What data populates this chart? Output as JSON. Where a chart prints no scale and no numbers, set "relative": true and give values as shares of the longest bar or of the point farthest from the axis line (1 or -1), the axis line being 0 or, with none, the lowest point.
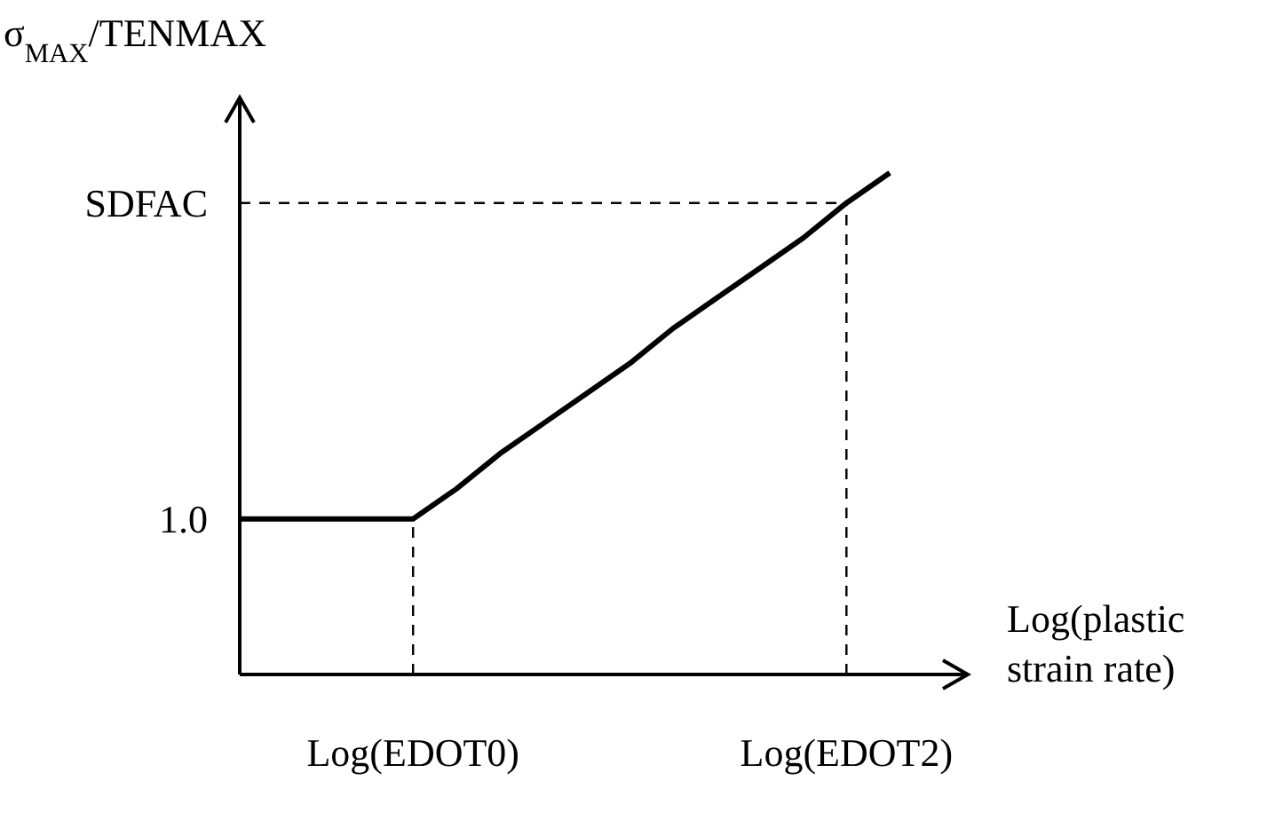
{
  "chart_data": {
    "type": "line",
    "relative": true,
    "ylabel": "σ$_{MAX}$/TENMAX",
    "xlabel": "Log(plastic strain rate)",
    "categories": [
      null,
      null,
      null,
      null,
      "Log(EDOT0)",
      null,
      null,
      null,
      null,
      null,
      null,
      null,
      null,
      null,
      "Log(EDOT2)",
      null
    ],
    "series": [
      {
        "color": "#000000",
        "values": [
          0.31,
          0.31,
          0.31,
          0.31,
          0.31,
          0.37,
          0.44,
          0.5,
          0.56,
          0.62,
          0.69,
          0.75,
          0.81,
          0.87,
          0.94,
          1
        ]
      }
    ],
    "ref_lines": [
      {
        "axis": "x",
        "value": "Log(EDOT0)",
        "line_style": "dashed"
      },
      {
        "axis": "x",
        "value": "Log(EDOT2)",
        "line_style": "dashed"
      },
      {
        "axis": "y",
        "value": 0.94,
        "label": "SDFAC",
        "line_style": "dashed"
      }
    ],
    "annotations": [
      "1.0"
    ],
    "grid": false,
    "legend": false,
    "marker": "none",
    "line_style": "solid"
  }
}
